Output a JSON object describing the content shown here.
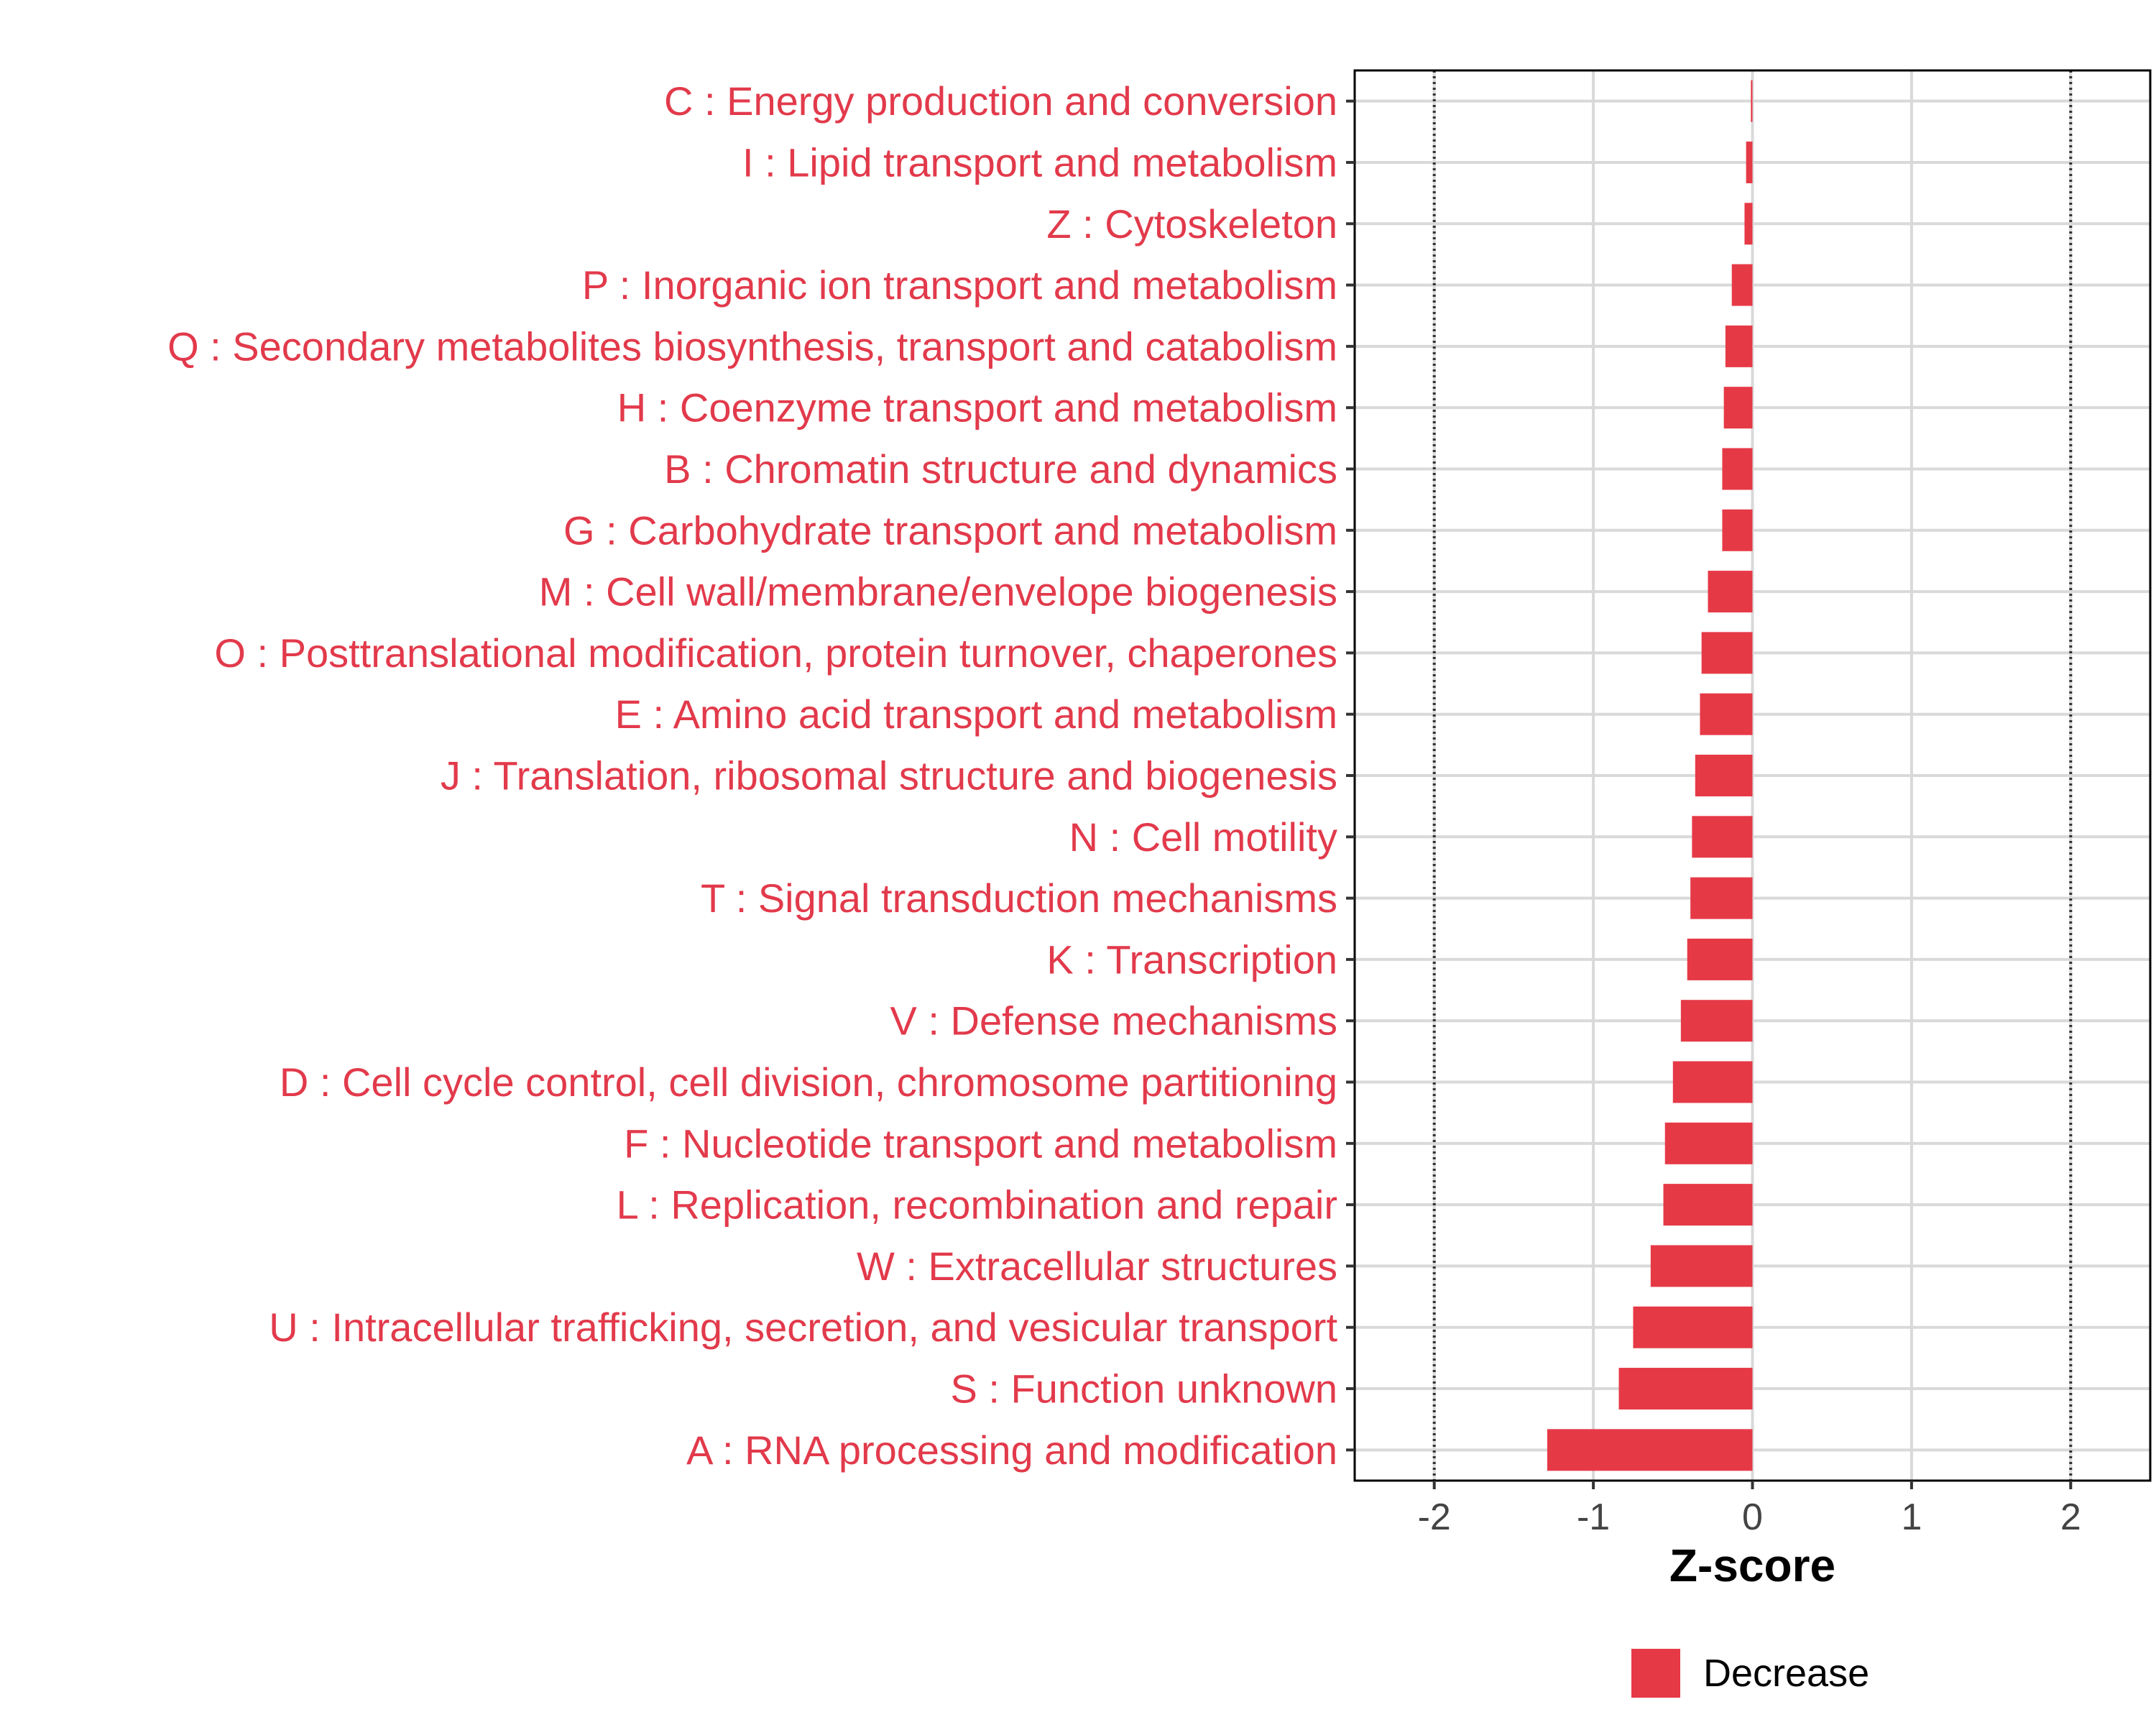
{
  "chart_data": {
    "type": "bar",
    "orientation": "horizontal",
    "xlabel": "Z-score",
    "ylabel": "",
    "xlim": [
      -2.5,
      2.5
    ],
    "xticks": [
      -2,
      -1,
      0,
      1,
      2
    ],
    "xtick_labels": [
      "-2",
      "-1",
      "0",
      "1",
      "2"
    ],
    "reference_lines": [
      -2,
      2
    ],
    "grid": true,
    "legend_position": "bottom",
    "series": [
      {
        "name": "Decrease",
        "color": "#e63946",
        "categories": [
          "C : Energy production and conversion",
          "I : Lipid transport and metabolism",
          "Z : Cytoskeleton",
          "P : Inorganic ion transport and metabolism",
          "Q : Secondary metabolites biosynthesis, transport and catabolism",
          "H : Coenzyme transport and metabolism",
          "B : Chromatin structure and dynamics",
          "G : Carbohydrate transport and metabolism",
          "M : Cell wall/membrane/envelope biogenesis",
          "O : Posttranslational modification, protein turnover, chaperones",
          "E : Amino acid transport and metabolism",
          "J : Translation, ribosomal structure and biogenesis",
          "N : Cell motility",
          "T : Signal transduction mechanisms",
          "K : Transcription",
          "V : Defense mechanisms",
          "D : Cell cycle control, cell division, chromosome partitioning",
          "F : Nucleotide transport and metabolism",
          "L : Replication, recombination and repair",
          "W : Extracellular structures",
          "U : Intracellular trafficking, secretion, and vesicular transport",
          "S : Function unknown",
          "A : RNA processing and modification"
        ],
        "values": [
          -0.01,
          -0.04,
          -0.05,
          -0.13,
          -0.17,
          -0.18,
          -0.19,
          -0.19,
          -0.28,
          -0.32,
          -0.33,
          -0.36,
          -0.38,
          -0.39,
          -0.41,
          -0.45,
          -0.5,
          -0.55,
          -0.56,
          -0.64,
          -0.75,
          -0.84,
          -1.29
        ]
      }
    ]
  }
}
